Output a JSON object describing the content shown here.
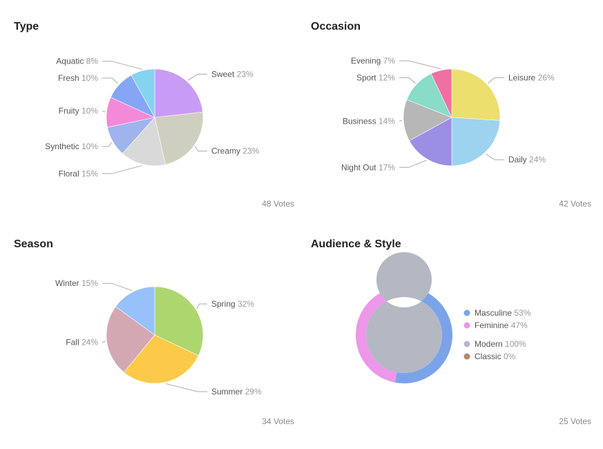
{
  "chart_data": [
    {
      "type": "pie",
      "title": "Type",
      "votes": "48 Votes",
      "slices": [
        {
          "label": "Sweet",
          "value": 23,
          "pct": "23%",
          "color": "#c89cf5"
        },
        {
          "label": "Creamy",
          "value": 23,
          "pct": "23%",
          "color": "#cfcfbf"
        },
        {
          "label": "Floral",
          "value": 15,
          "pct": "15%",
          "color": "#d9d9d9"
        },
        {
          "label": "Synthetic",
          "value": 10,
          "pct": "10%",
          "color": "#9fb4ec"
        },
        {
          "label": "Fruity",
          "value": 10,
          "pct": "10%",
          "color": "#f38ad8"
        },
        {
          "label": "Fresh",
          "value": 10,
          "pct": "10%",
          "color": "#85a6f5"
        },
        {
          "label": "Aquatic",
          "value": 8,
          "pct": "8%",
          "color": "#85d4ef"
        }
      ]
    },
    {
      "type": "pie",
      "title": "Occasion",
      "votes": "42 Votes",
      "slices": [
        {
          "label": "Leisure",
          "value": 26,
          "pct": "26%",
          "color": "#eddf6e"
        },
        {
          "label": "Daily",
          "value": 24,
          "pct": "24%",
          "color": "#9dd3ef"
        },
        {
          "label": "Night Out",
          "value": 17,
          "pct": "17%",
          "color": "#9a8ee5"
        },
        {
          "label": "Business",
          "value": 14,
          "pct": "14%",
          "color": "#b7b7b7"
        },
        {
          "label": "Sport",
          "value": 12,
          "pct": "12%",
          "color": "#88dcc8"
        },
        {
          "label": "Evening",
          "value": 7,
          "pct": "7%",
          "color": "#f070a4"
        }
      ]
    },
    {
      "type": "pie",
      "title": "Season",
      "votes": "34 Votes",
      "slices": [
        {
          "label": "Spring",
          "value": 32,
          "pct": "32%",
          "color": "#aed66e"
        },
        {
          "label": "Summer",
          "value": 29,
          "pct": "29%",
          "color": "#fcca48"
        },
        {
          "label": "Fall",
          "value": 24,
          "pct": "24%",
          "color": "#d3a8b2"
        },
        {
          "label": "Winter",
          "value": 15,
          "pct": "15%",
          "color": "#97c1fb"
        }
      ]
    },
    {
      "type": "donut",
      "title": "Audience & Style",
      "votes": "25 Votes",
      "legend": "right",
      "rings": [
        {
          "ring": "outer",
          "slices": [
            {
              "label": "Masculine",
              "value": 53,
              "pct": "53%",
              "color": "#7ba3ea"
            },
            {
              "label": "Feminine",
              "value": 47,
              "pct": "47%",
              "color": "#ec97e9"
            }
          ]
        },
        {
          "ring": "inner",
          "slices": [
            {
              "label": "Modern",
              "value": 100,
              "pct": "100%",
              "color": "#b3b8c3"
            },
            {
              "label": "Classic",
              "value": 0,
              "pct": "0%",
              "color": "#b8866b"
            }
          ]
        }
      ]
    }
  ]
}
